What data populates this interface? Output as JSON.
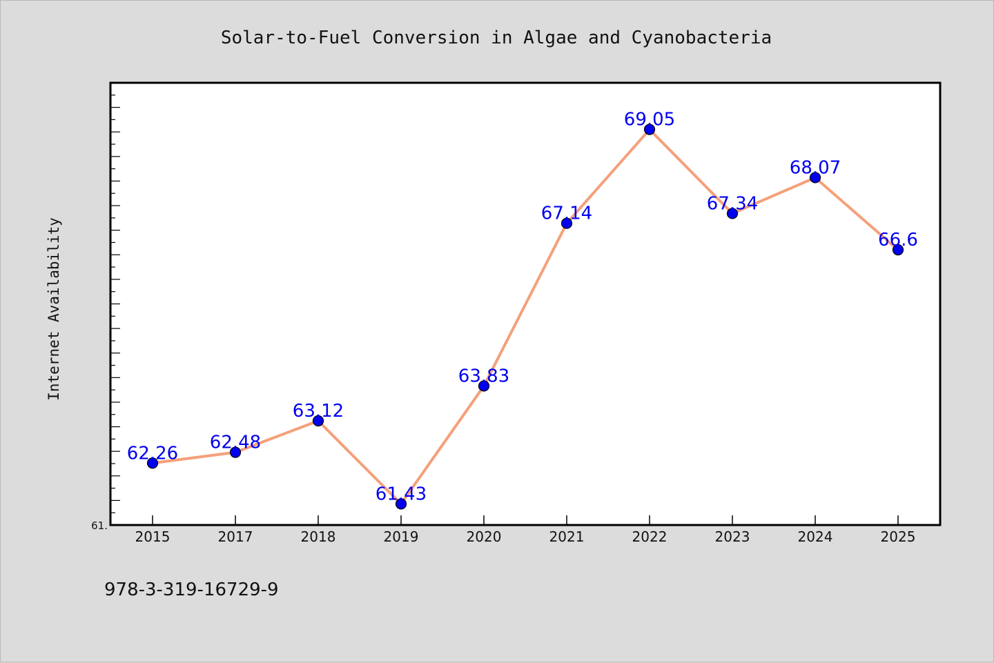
{
  "chart_data": {
    "type": "line",
    "title": "Solar-to-Fuel Conversion in Algae and Cyanobacteria",
    "xlabel": "",
    "ylabel": "Internet Availability",
    "categories": [
      "2015",
      "2017",
      "2018",
      "2019",
      "2020",
      "2021",
      "2022",
      "2023",
      "2024",
      "2025"
    ],
    "values": [
      62.26,
      62.48,
      63.12,
      61.43,
      63.83,
      67.14,
      69.05,
      67.34,
      68.07,
      66.6
    ],
    "value_labels": [
      "62.26",
      "62.48",
      "63.12",
      "61.43",
      "63.83",
      "67.14",
      "69.05",
      "67.34",
      "68.07",
      "66.6"
    ],
    "ylim": [
      61.0,
      70.0
    ],
    "ytick_labels": [
      "61."
    ],
    "grid": false,
    "legend": "none",
    "line_color": "#f5a07a",
    "marker_color": "#0000ee",
    "label_color": "#0000ee",
    "plot_background": "#ffffff",
    "figure_background": "#dcdcdc"
  },
  "footer": {
    "code": "978-3-319-16729-9"
  }
}
